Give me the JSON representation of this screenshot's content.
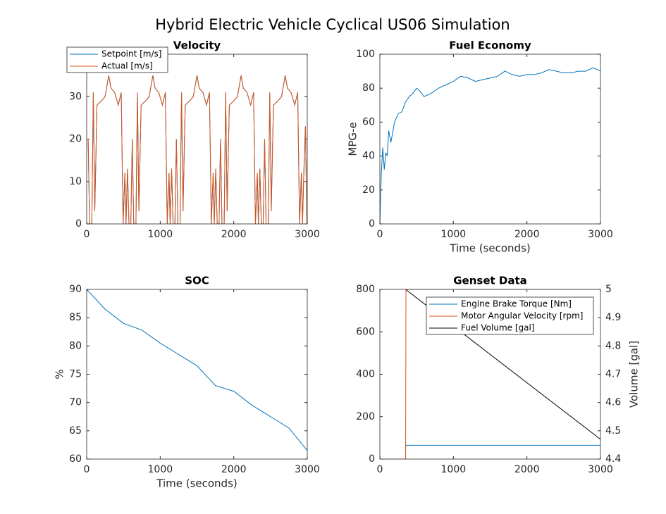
{
  "title": "Hybrid Electric Vehicle Cyclical US06 Simulation",
  "chart_data": [
    {
      "type": "line",
      "title": "Velocity",
      "legend": "northwest",
      "x": [
        0,
        20,
        40,
        70,
        90,
        110,
        140,
        200,
        250,
        300,
        330,
        380,
        430,
        470,
        495,
        520,
        535,
        555,
        575,
        595,
        600,
        620,
        640,
        670,
        690,
        710,
        740,
        800,
        850,
        900,
        930,
        980,
        1030,
        1070,
        1095,
        1120,
        1135,
        1155,
        1175,
        1195,
        1200,
        1220,
        1240,
        1270,
        1290,
        1310,
        1340,
        1400,
        1450,
        1500,
        1530,
        1580,
        1630,
        1670,
        1695,
        1720,
        1735,
        1755,
        1775,
        1795,
        1800,
        1820,
        1840,
        1870,
        1890,
        1910,
        1940,
        2000,
        2050,
        2100,
        2130,
        2180,
        2230,
        2270,
        2295,
        2320,
        2335,
        2355,
        2375,
        2395,
        2400,
        2420,
        2440,
        2470,
        2490,
        2510,
        2540,
        2600,
        2650,
        2700,
        2730,
        2780,
        2830,
        2870,
        2895,
        2920,
        2935,
        2955,
        2975,
        2995
      ],
      "series": [
        {
          "name": "Setpoint [m/s]",
          "color": "#0072bd",
          "values": [
            20,
            20,
            0,
            0,
            31,
            3,
            28,
            29,
            30,
            35,
            32,
            31,
            28,
            31,
            0,
            12,
            0,
            13,
            0,
            0,
            0,
            20,
            0,
            0,
            31,
            3,
            28,
            29,
            30,
            35,
            32,
            31,
            28,
            31,
            0,
            12,
            0,
            13,
            0,
            0,
            0,
            20,
            0,
            0,
            31,
            3,
            28,
            29,
            30,
            35,
            32,
            31,
            28,
            31,
            0,
            12,
            0,
            13,
            0,
            0,
            0,
            20,
            0,
            0,
            31,
            3,
            28,
            29,
            30,
            35,
            32,
            31,
            28,
            31,
            0,
            12,
            0,
            13,
            0,
            0,
            0,
            20,
            0,
            0,
            31,
            3,
            28,
            29,
            30,
            35,
            32,
            31,
            28,
            31,
            0,
            12,
            0,
            13,
            23,
            0
          ]
        },
        {
          "name": "Actual [m/s]",
          "color": "#d95319",
          "values": [
            20,
            20,
            0,
            0,
            31,
            3,
            28,
            29,
            30,
            35,
            32,
            31,
            28,
            31,
            0,
            12,
            0,
            13,
            0,
            0,
            0,
            20,
            0,
            0,
            31,
            3,
            28,
            29,
            30,
            35,
            32,
            31,
            28,
            31,
            0,
            12,
            0,
            13,
            0,
            0,
            0,
            20,
            0,
            0,
            31,
            3,
            28,
            29,
            30,
            35,
            32,
            31,
            28,
            31,
            0,
            12,
            0,
            13,
            0,
            0,
            0,
            20,
            0,
            0,
            31,
            3,
            28,
            29,
            30,
            35,
            32,
            31,
            28,
            31,
            0,
            12,
            0,
            13,
            0,
            0,
            0,
            20,
            0,
            0,
            31,
            3,
            28,
            29,
            30,
            35,
            32,
            31,
            28,
            31,
            0,
            12,
            0,
            13,
            23,
            0
          ]
        }
      ],
      "xlim": [
        0,
        3000
      ],
      "xticks": [
        0,
        1000,
        2000,
        3000
      ],
      "ylim": [
        0,
        40
      ],
      "yticks": [
        0,
        10,
        20,
        30
      ]
    },
    {
      "type": "line",
      "title": "Fuel Economy",
      "xlabel": "Time (seconds)",
      "ylabel": "MPG-e",
      "x": [
        0,
        20,
        40,
        60,
        80,
        100,
        120,
        150,
        200,
        250,
        300,
        350,
        400,
        450,
        500,
        550,
        600,
        700,
        800,
        900,
        1000,
        1100,
        1200,
        1300,
        1400,
        1500,
        1600,
        1700,
        1800,
        1900,
        2000,
        2100,
        2200,
        2300,
        2400,
        2500,
        2600,
        2700,
        2800,
        2900,
        3000
      ],
      "series": [
        {
          "color": "#0072bd",
          "values": [
            0,
            30,
            45,
            32,
            42,
            40,
            55,
            48,
            60,
            65,
            66,
            72,
            75,
            77,
            80,
            78,
            75,
            77,
            80,
            82,
            84,
            87,
            86,
            84,
            85,
            86,
            87,
            90,
            88,
            87,
            88,
            88,
            89,
            91,
            90,
            89,
            89,
            90,
            90,
            92,
            90
          ]
        }
      ],
      "xlim": [
        0,
        3000
      ],
      "xticks": [
        0,
        1000,
        2000,
        3000
      ],
      "ylim": [
        0,
        100
      ],
      "yticks": [
        0,
        20,
        40,
        60,
        80,
        100
      ]
    },
    {
      "type": "line",
      "title": "SOC",
      "xlabel": "Time (seconds)",
      "ylabel": "%",
      "x": [
        0,
        250,
        500,
        750,
        1000,
        1250,
        1500,
        1750,
        2000,
        2250,
        2500,
        2750,
        3000
      ],
      "series": [
        {
          "color": "#0072bd",
          "values": [
            90,
            86.5,
            84,
            82.8,
            80.5,
            78.5,
            76.5,
            73,
            72,
            69.5,
            67.5,
            65.5,
            61.5
          ]
        }
      ],
      "xlim": [
        0,
        3000
      ],
      "xticks": [
        0,
        1000,
        2000,
        3000
      ],
      "ylim": [
        60,
        90
      ],
      "yticks": [
        60,
        65,
        70,
        75,
        80,
        85,
        90
      ]
    },
    {
      "type": "line",
      "title": "Genset Data",
      "y2label": "Volume [gal]",
      "legend": "northeast",
      "series": [
        {
          "name": "Engine Brake Torque [Nm]",
          "color": "#0072bd",
          "x": [
            0,
            350,
            350,
            3000
          ],
          "values": [
            0,
            0,
            65,
            65
          ]
        },
        {
          "name": "Motor Angular Velocity [rpm]",
          "color": "#d95319",
          "x": [
            0,
            350,
            355,
            3000
          ],
          "values": [
            0,
            0,
            800,
            800
          ]
        },
        {
          "name": "Fuel Volume [gal]",
          "color": "#000000",
          "axis": "y2",
          "x": [
            350,
            3000
          ],
          "values": [
            5,
            4.47
          ]
        }
      ],
      "xlim": [
        0,
        3000
      ],
      "xticks": [
        0,
        1000,
        2000,
        3000
      ],
      "ylim": [
        0,
        800
      ],
      "yticks": [
        0,
        200,
        400,
        600,
        800
      ],
      "y2lim": [
        4.4,
        5
      ],
      "y2ticks": [
        4.4,
        4.5,
        4.6,
        4.7,
        4.8,
        4.9,
        5
      ]
    }
  ]
}
